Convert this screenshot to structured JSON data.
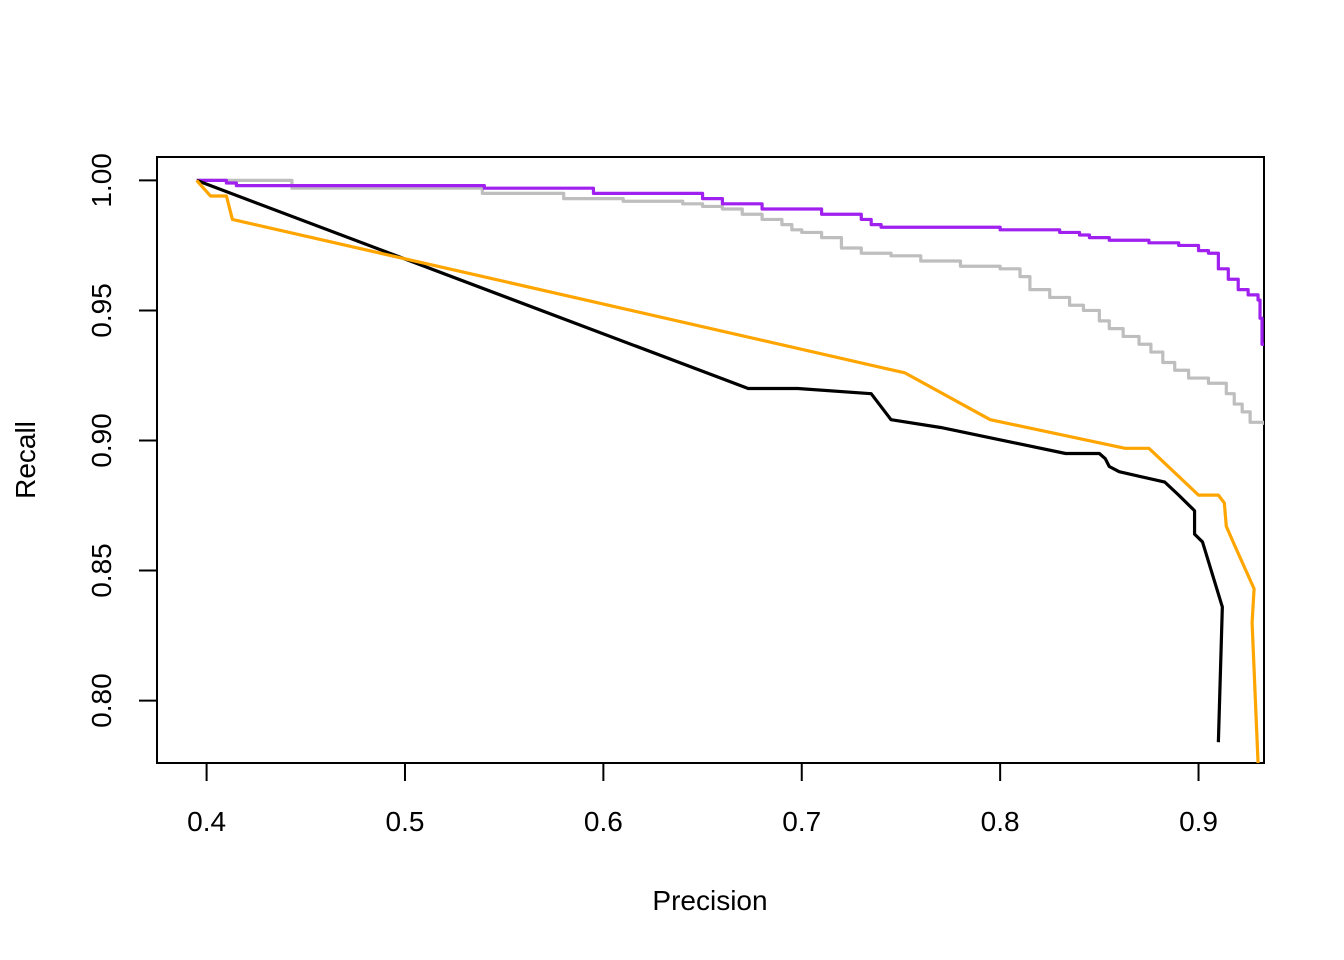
{
  "chart_data": {
    "type": "line",
    "title": "",
    "xlabel": "Precision",
    "ylabel": "Recall",
    "xlim": [
      0.375,
      0.933
    ],
    "ylim": [
      0.776,
      1.009
    ],
    "x_ticks": [
      "0.4",
      "0.5",
      "0.6",
      "0.7",
      "0.8",
      "0.9"
    ],
    "y_ticks": [
      "0.80",
      "0.85",
      "0.90",
      "0.95",
      "1.00"
    ],
    "legend": "none",
    "grid": false,
    "series": [
      {
        "color": "#BEBEBE",
        "step": true,
        "points": [
          [
            0.395,
            1.0
          ],
          [
            0.443,
            0.997
          ],
          [
            0.539,
            0.995
          ],
          [
            0.58,
            0.993
          ],
          [
            0.61,
            0.992
          ],
          [
            0.64,
            0.991
          ],
          [
            0.65,
            0.99
          ],
          [
            0.66,
            0.989
          ],
          [
            0.67,
            0.987
          ],
          [
            0.68,
            0.985
          ],
          [
            0.69,
            0.983
          ],
          [
            0.695,
            0.981
          ],
          [
            0.7,
            0.98
          ],
          [
            0.705,
            0.98
          ],
          [
            0.71,
            0.978
          ],
          [
            0.72,
            0.974
          ],
          [
            0.73,
            0.972
          ],
          [
            0.745,
            0.971
          ],
          [
            0.76,
            0.969
          ],
          [
            0.78,
            0.967
          ],
          [
            0.79,
            0.967
          ],
          [
            0.8,
            0.966
          ],
          [
            0.81,
            0.963
          ],
          [
            0.815,
            0.958
          ],
          [
            0.825,
            0.955
          ],
          [
            0.835,
            0.952
          ],
          [
            0.842,
            0.95
          ],
          [
            0.85,
            0.946
          ],
          [
            0.855,
            0.943
          ],
          [
            0.862,
            0.94
          ],
          [
            0.87,
            0.937
          ],
          [
            0.876,
            0.934
          ],
          [
            0.882,
            0.93
          ],
          [
            0.888,
            0.927
          ],
          [
            0.895,
            0.924
          ],
          [
            0.905,
            0.922
          ],
          [
            0.914,
            0.918
          ],
          [
            0.918,
            0.914
          ],
          [
            0.922,
            0.911
          ],
          [
            0.926,
            0.907
          ],
          [
            0.933,
            0.906
          ]
        ]
      },
      {
        "color": "#A020F0",
        "step": true,
        "points": [
          [
            0.395,
            1.0
          ],
          [
            0.41,
            0.999
          ],
          [
            0.415,
            0.998
          ],
          [
            0.54,
            0.997
          ],
          [
            0.595,
            0.995
          ],
          [
            0.65,
            0.993
          ],
          [
            0.66,
            0.991
          ],
          [
            0.68,
            0.989
          ],
          [
            0.71,
            0.987
          ],
          [
            0.73,
            0.985
          ],
          [
            0.735,
            0.983
          ],
          [
            0.74,
            0.982
          ],
          [
            0.8,
            0.981
          ],
          [
            0.83,
            0.98
          ],
          [
            0.84,
            0.979
          ],
          [
            0.845,
            0.978
          ],
          [
            0.855,
            0.977
          ],
          [
            0.875,
            0.976
          ],
          [
            0.89,
            0.975
          ],
          [
            0.9,
            0.973
          ],
          [
            0.905,
            0.972
          ],
          [
            0.91,
            0.97
          ],
          [
            0.91,
            0.966
          ],
          [
            0.915,
            0.962
          ],
          [
            0.92,
            0.958
          ],
          [
            0.925,
            0.956
          ],
          [
            0.93,
            0.954
          ],
          [
            0.931,
            0.947
          ],
          [
            0.932,
            0.937
          ],
          [
            0.933,
            0.937
          ]
        ]
      },
      {
        "color": "#000000",
        "step": false,
        "points": [
          [
            0.395,
            1.0
          ],
          [
            0.673,
            0.92
          ],
          [
            0.698,
            0.92
          ],
          [
            0.735,
            0.918
          ],
          [
            0.745,
            0.908
          ],
          [
            0.77,
            0.905
          ],
          [
            0.833,
            0.895
          ],
          [
            0.85,
            0.895
          ],
          [
            0.853,
            0.893
          ],
          [
            0.855,
            0.89
          ],
          [
            0.86,
            0.888
          ],
          [
            0.883,
            0.884
          ],
          [
            0.89,
            0.879
          ],
          [
            0.898,
            0.873
          ],
          [
            0.898,
            0.864
          ],
          [
            0.902,
            0.861
          ],
          [
            0.912,
            0.836
          ],
          [
            0.91,
            0.784
          ]
        ]
      },
      {
        "color": "#FFA500",
        "step": false,
        "points": [
          [
            0.395,
            1.0
          ],
          [
            0.402,
            0.994
          ],
          [
            0.41,
            0.994
          ],
          [
            0.413,
            0.985
          ],
          [
            0.752,
            0.926
          ],
          [
            0.795,
            0.908
          ],
          [
            0.863,
            0.897
          ],
          [
            0.875,
            0.897
          ],
          [
            0.9,
            0.879
          ],
          [
            0.91,
            0.879
          ],
          [
            0.913,
            0.876
          ],
          [
            0.914,
            0.867
          ],
          [
            0.918,
            0.86
          ],
          [
            0.928,
            0.843
          ],
          [
            0.927,
            0.83
          ],
          [
            0.93,
            0.776
          ]
        ]
      }
    ]
  }
}
